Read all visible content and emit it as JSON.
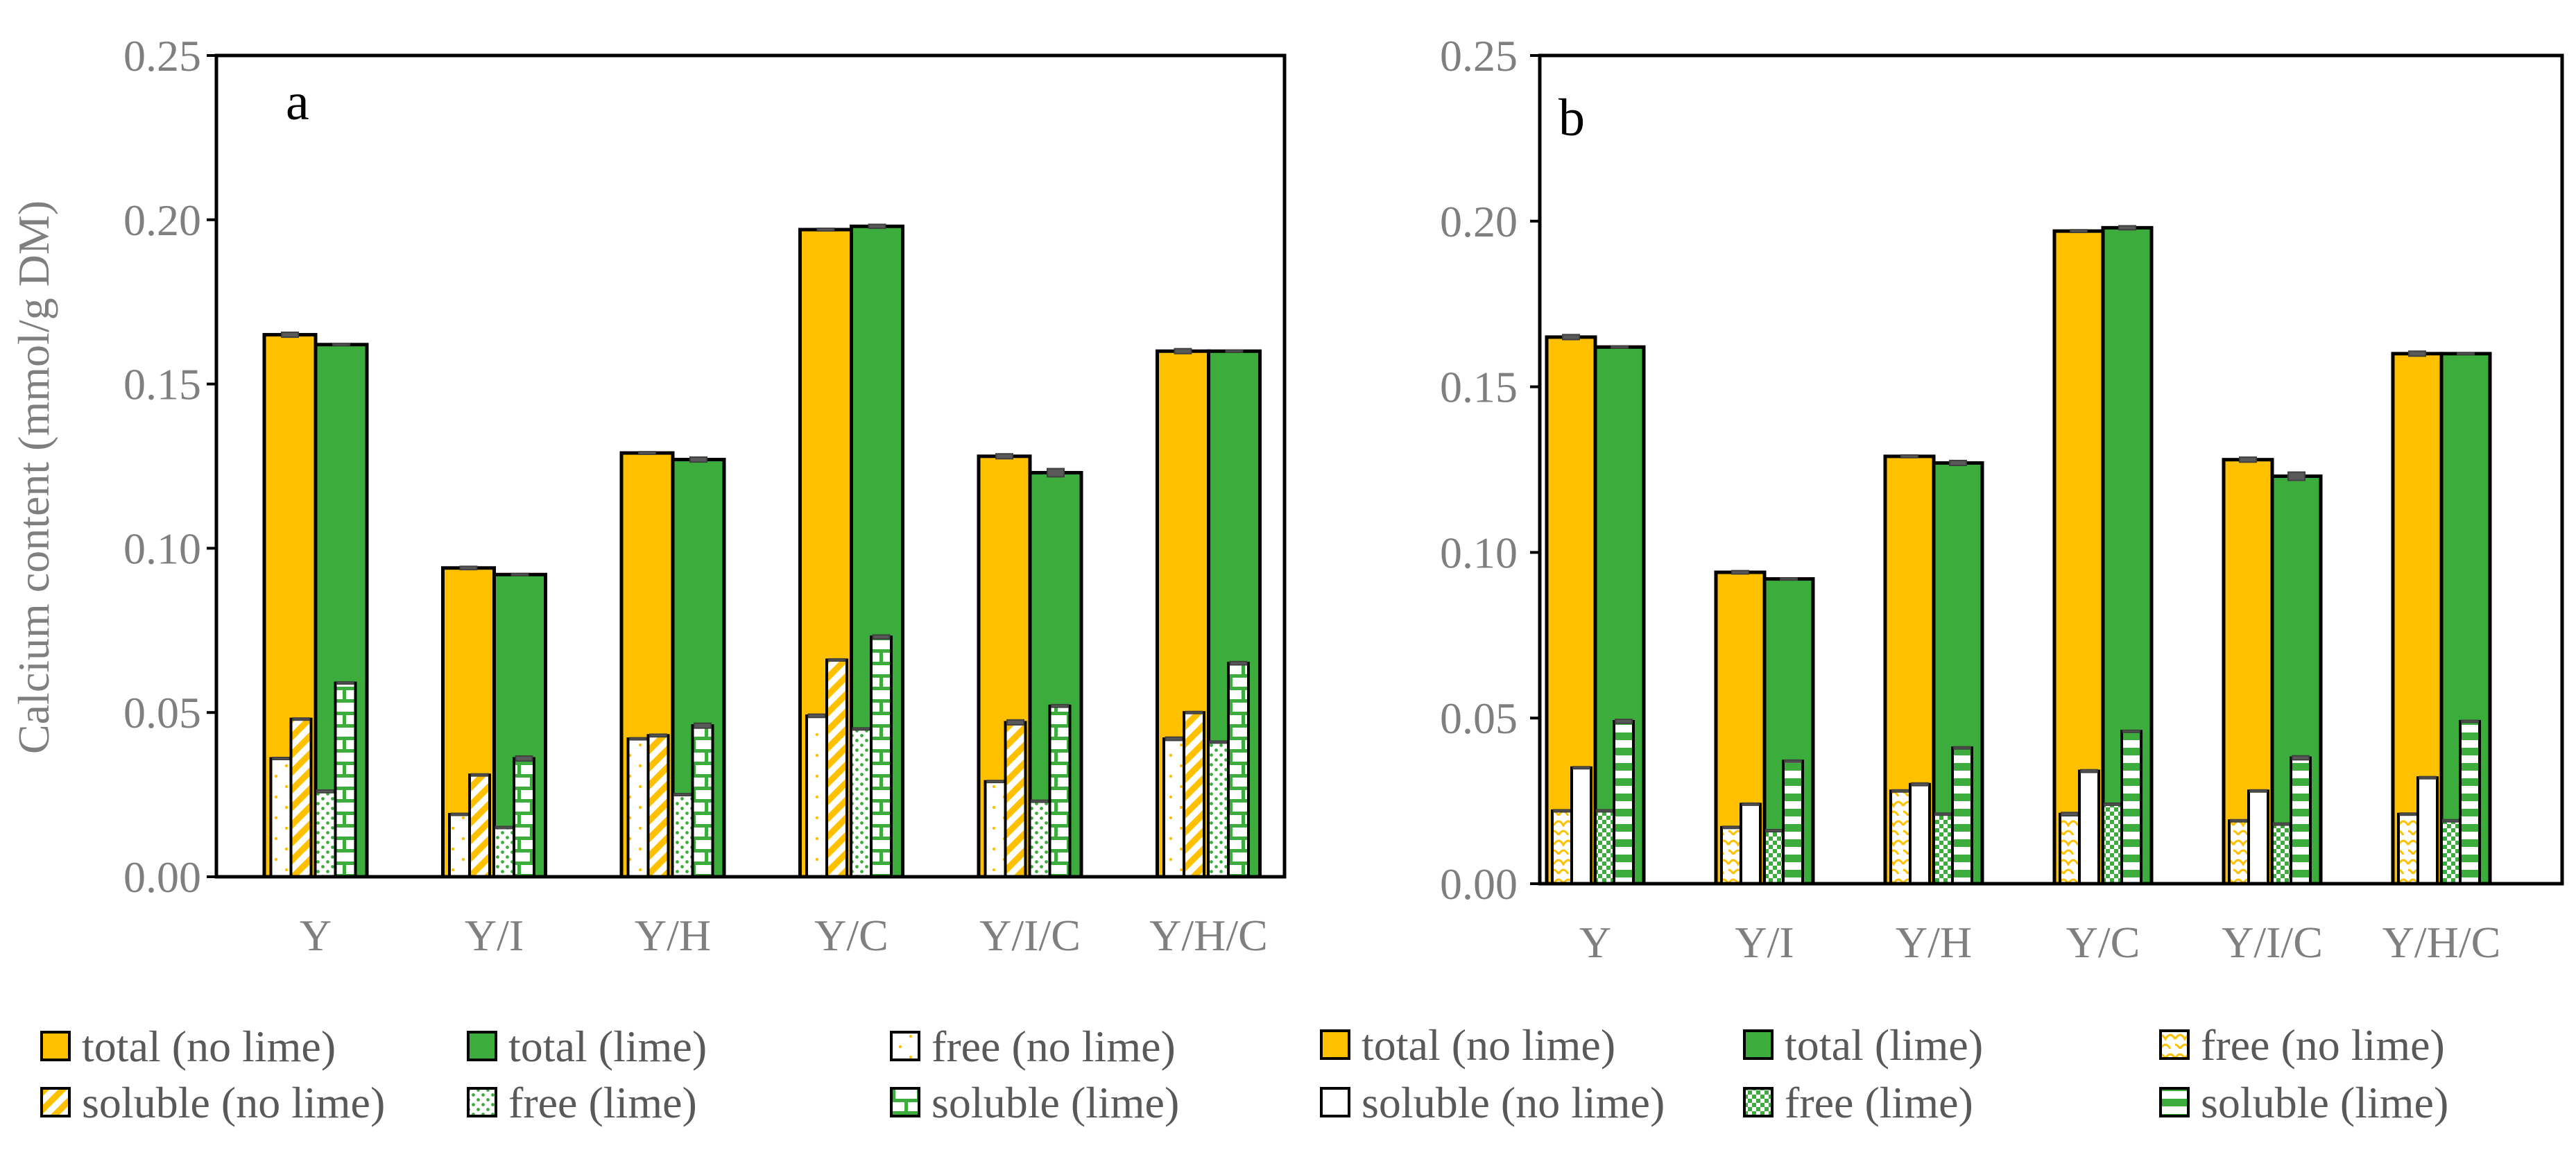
{
  "chart_data": [
    {
      "type": "bar",
      "panel_label": "a",
      "ylabel": "Calcium content (mmol/g DM)",
      "ylim": [
        0,
        0.25
      ],
      "yticks": [
        "0.00",
        "0.05",
        "0.10",
        "0.15",
        "0.20",
        "0.25"
      ],
      "categories": [
        "Y",
        "Y/I",
        "Y/H",
        "Y/C",
        "Y/I/C",
        "Y/H/C"
      ],
      "series": [
        {
          "name": "total (no lime)",
          "pattern": "solid-orange",
          "values": [
            0.165,
            0.094,
            0.129,
            0.197,
            0.128,
            0.16
          ],
          "err": [
            0.0015,
            0.001,
            0.0008,
            0.0008,
            0.0015,
            0.0015
          ]
        },
        {
          "name": "total (lime)",
          "pattern": "solid-green",
          "values": [
            0.162,
            0.092,
            0.127,
            0.198,
            0.123,
            0.16
          ],
          "err": [
            0.0006,
            0.0006,
            0.0015,
            0.0012,
            0.0025,
            0.0006
          ]
        },
        {
          "name": "free (no lime)",
          "pattern": "dots-orange",
          "values": [
            0.036,
            0.019,
            0.042,
            0.049,
            0.029,
            0.042
          ],
          "err": [
            0,
            0,
            0,
            0.001,
            0,
            0.001
          ]
        },
        {
          "name": "soluble (no lime)",
          "pattern": "diag-orange",
          "values": [
            0.048,
            0.031,
            0.043,
            0.066,
            0.047,
            0.05
          ],
          "err": [
            0.0006,
            0.0006,
            0.0008,
            0.0006,
            0.0015,
            0.0006
          ]
        },
        {
          "name": "free (lime)",
          "pattern": "dots-green",
          "values": [
            0.026,
            0.015,
            0.025,
            0.045,
            0.023,
            0.041
          ],
          "err": [
            0.0008,
            0,
            0.0006,
            0,
            0.0006,
            0
          ]
        },
        {
          "name": "soluble (lime)",
          "pattern": "brick-green",
          "values": [
            0.059,
            0.036,
            0.046,
            0.073,
            0.052,
            0.065
          ],
          "err": [
            0.0006,
            0.0015,
            0.0015,
            0.0012,
            0.0008,
            0.001
          ]
        }
      ],
      "legend": [
        [
          "total (no lime)",
          "total (lime)",
          "free (no lime)"
        ],
        [
          "soluble (no lime)",
          "free (lime)",
          "soluble (lime)"
        ]
      ]
    },
    {
      "type": "bar",
      "panel_label": "b",
      "ylabel": "",
      "ylim": [
        0,
        0.25
      ],
      "yticks": [
        "0.00",
        "0.05",
        "0.10",
        "0.15",
        "0.20",
        "0.25"
      ],
      "categories": [
        "Y",
        "Y/I",
        "Y/H",
        "Y/C",
        "Y/I/C",
        "Y/H/C"
      ],
      "series": [
        {
          "name": "total (no lime)",
          "pattern": "solid-orange",
          "values": [
            0.165,
            0.094,
            0.129,
            0.197,
            0.128,
            0.16
          ],
          "err": [
            0.0015,
            0.001,
            0.0008,
            0.0008,
            0.0015,
            0.0015
          ]
        },
        {
          "name": "total (lime)",
          "pattern": "solid-green",
          "values": [
            0.162,
            0.092,
            0.127,
            0.198,
            0.123,
            0.16
          ],
          "err": [
            0.0006,
            0.0006,
            0.0015,
            0.0012,
            0.0025,
            0.0006
          ]
        },
        {
          "name": "free (no lime)",
          "pattern": "scale-orange",
          "values": [
            0.022,
            0.017,
            0.028,
            0.021,
            0.019,
            0.021
          ],
          "err": [
            0,
            0,
            0,
            0.001,
            0,
            0
          ]
        },
        {
          "name": "soluble (no lime)",
          "pattern": "plain-white",
          "values": [
            0.035,
            0.024,
            0.03,
            0.034,
            0.028,
            0.032
          ],
          "err": [
            0.0006,
            0.0006,
            0.0008,
            0.0008,
            0.0006,
            0.0006
          ]
        },
        {
          "name": "free (lime)",
          "pattern": "check-green",
          "values": [
            0.022,
            0.016,
            0.021,
            0.024,
            0.018,
            0.019
          ],
          "err": [
            0,
            0,
            0,
            0,
            0,
            0.0006
          ]
        },
        {
          "name": "soluble (lime)",
          "pattern": "hstripe-green",
          "values": [
            0.049,
            0.037,
            0.041,
            0.046,
            0.038,
            0.049
          ],
          "err": [
            0.0012,
            0.0006,
            0.0006,
            0.0006,
            0.0012,
            0.0006
          ]
        }
      ],
      "legend": [
        [
          "total (no lime)",
          "total (lime)",
          "free (no lime)"
        ],
        [
          "soluble (no lime)",
          "free (lime)",
          "soluble (lime)"
        ]
      ]
    }
  ]
}
